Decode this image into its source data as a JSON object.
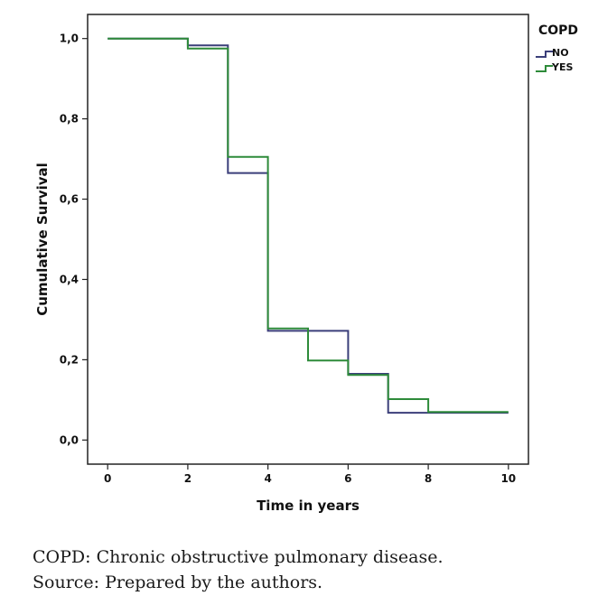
{
  "chart_data": {
    "type": "line",
    "step": true,
    "title": "",
    "xlabel": "Time in years",
    "ylabel": "Cumulative Survival",
    "xlim": [
      -0.5,
      10.5
    ],
    "ylim": [
      -0.06,
      1.06
    ],
    "xticks": [
      0,
      2,
      4,
      6,
      8,
      10
    ],
    "yticks": [
      0.0,
      0.2,
      0.4,
      0.6,
      0.8,
      1.0
    ],
    "yticklabels": [
      "0,0",
      "0,2",
      "0,4",
      "0,6",
      "0,8",
      "1,0"
    ],
    "grid": false,
    "legend": {
      "title": "COPD",
      "position": "top-right, outside plot"
    },
    "series": [
      {
        "name": "NO",
        "color": "#3b3f7a",
        "points": [
          [
            0,
            1.0
          ],
          [
            2,
            0.983
          ],
          [
            3,
            0.665
          ],
          [
            4,
            0.272
          ],
          [
            6,
            0.165
          ],
          [
            7,
            0.068
          ],
          [
            10,
            0.068
          ]
        ]
      },
      {
        "name": "YES",
        "color": "#2e8b3a",
        "points": [
          [
            0,
            1.0
          ],
          [
            2,
            0.975
          ],
          [
            3,
            0.705
          ],
          [
            4,
            0.278
          ],
          [
            5,
            0.198
          ],
          [
            6,
            0.162
          ],
          [
            7,
            0.102
          ],
          [
            8,
            0.07
          ],
          [
            10,
            0.07
          ]
        ]
      }
    ]
  },
  "captions": {
    "line1": "COPD: Chronic obstructive pulmonary disease.",
    "line2": "Source: Prepared by the authors."
  }
}
